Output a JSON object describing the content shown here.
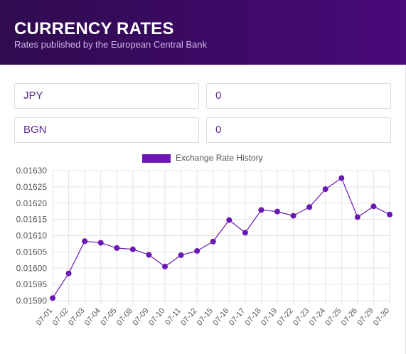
{
  "header": {
    "title": "CURRENCY RATES",
    "subtitle": "Rates published by the European Central Bank"
  },
  "converter": {
    "from_currency": "JPY",
    "from_amount": "0",
    "to_currency": "BGN",
    "to_amount": "0"
  },
  "colors": {
    "accent": "#6b17b4",
    "header_start": "#2f0b4f",
    "header_end": "#4a0a7a"
  },
  "chart_data": {
    "type": "line",
    "legend": "Exchange Rate History",
    "legend_position": "top-center",
    "grid": true,
    "categories": [
      "07-01",
      "07-02",
      "07-03",
      "07-04",
      "07-05",
      "07-08",
      "07-09",
      "07-10",
      "07-11",
      "07-12",
      "07-15",
      "07-16",
      "07-17",
      "07-18",
      "07-19",
      "07-22",
      "07-23",
      "07-24",
      "07-25",
      "07-26",
      "07-29",
      "07-30"
    ],
    "series": [
      {
        "name": "Exchange Rate History",
        "values": [
          0.015908,
          0.015984,
          0.016083,
          0.016078,
          0.016062,
          0.016058,
          0.016041,
          0.016005,
          0.01604,
          0.016053,
          0.016082,
          0.016148,
          0.016109,
          0.016179,
          0.016174,
          0.016161,
          0.016188,
          0.016243,
          0.016277,
          0.016157,
          0.01619,
          0.016165
        ]
      }
    ],
    "ylim": [
      0.0159,
      0.0163
    ],
    "yticks": [
      "0.01630",
      "0.01625",
      "0.01620",
      "0.01615",
      "0.01610",
      "0.01605",
      "0.01600",
      "0.01595",
      "0.01590"
    ]
  }
}
